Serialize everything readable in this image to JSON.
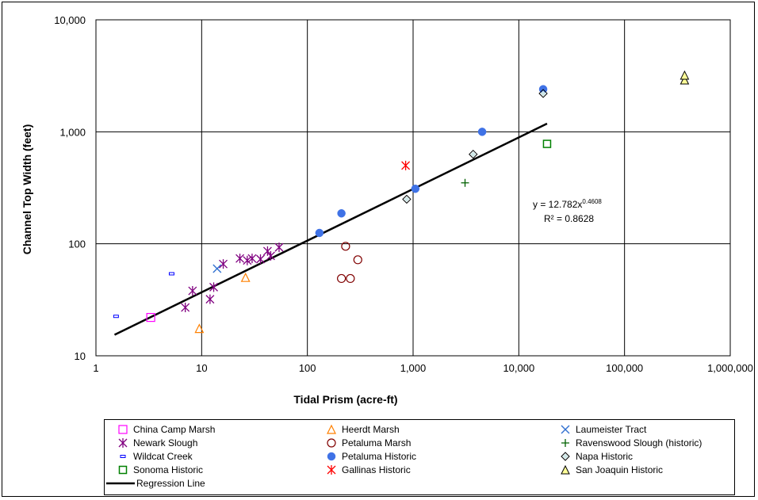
{
  "chart_data": {
    "type": "scatter",
    "title": "",
    "xlabel": "Tidal Prism (acre-ft)",
    "ylabel": "Channel Top Width (feet)",
    "xscale": "log",
    "yscale": "log",
    "xlim": [
      1,
      1000000
    ],
    "ylim": [
      10,
      10000
    ],
    "x_ticks": [
      1,
      10,
      100,
      1000,
      10000,
      100000,
      1000000
    ],
    "x_tick_labels": [
      "1",
      "10",
      "100",
      "1,000",
      "10,000",
      "100,000",
      "1,000,000"
    ],
    "y_ticks": [
      10,
      100,
      1000,
      10000
    ],
    "y_tick_labels": [
      "10",
      "100",
      "1,000",
      "10,000"
    ],
    "grid": true,
    "legend_position": "bottom",
    "equation_label": "y = 12.782x",
    "equation_exponent": "0.4608",
    "r2_label": "R² = 0.8628",
    "series": [
      {
        "name": "China Camp Marsh",
        "marker": "square-open",
        "color": "#ff00ff",
        "points": [
          [
            3.3,
            22
          ]
        ]
      },
      {
        "name": "Heerdt Marsh",
        "marker": "triangle-open",
        "color": "#ff8000",
        "points": [
          [
            9.5,
            17.5
          ],
          [
            26,
            50
          ]
        ]
      },
      {
        "name": "Laumeister Tract",
        "marker": "x",
        "color": "#3070d0",
        "points": [
          [
            14,
            60
          ]
        ]
      },
      {
        "name": "Newark Slough",
        "marker": "asterisk",
        "color": "#800080",
        "points": [
          [
            7,
            27
          ],
          [
            8.2,
            38
          ],
          [
            12,
            32
          ],
          [
            13,
            41
          ],
          [
            16,
            66
          ],
          [
            23,
            74
          ],
          [
            27,
            71
          ],
          [
            30,
            74
          ],
          [
            36,
            73
          ],
          [
            42,
            86
          ],
          [
            45,
            78
          ],
          [
            54,
            93
          ]
        ]
      },
      {
        "name": "Petaluma Marsh",
        "marker": "circle-open",
        "color": "#800000",
        "points": [
          [
            210,
            49
          ],
          [
            230,
            95
          ],
          [
            255,
            49
          ],
          [
            300,
            72
          ]
        ]
      },
      {
        "name": "Ravenswood Slough (historic)",
        "marker": "plus",
        "color": "#006000",
        "points": [
          [
            3100,
            350
          ]
        ]
      },
      {
        "name": "Wildcat Creek",
        "marker": "dash",
        "color": "#0000ff",
        "points": [
          [
            1.55,
            22.5
          ],
          [
            5.2,
            54
          ]
        ]
      },
      {
        "name": "Petaluma Historic",
        "marker": "circle-filled",
        "color": "#3f72e6",
        "points": [
          [
            130,
            125
          ],
          [
            210,
            187
          ],
          [
            1050,
            310
          ],
          [
            4500,
            1000
          ],
          [
            17000,
            2400
          ]
        ]
      },
      {
        "name": "Napa Historic",
        "marker": "diamond-open",
        "color": "#008080",
        "points": [
          [
            870,
            250
          ],
          [
            3700,
            630
          ],
          [
            17000,
            2200
          ]
        ]
      },
      {
        "name": "Sonoma Historic",
        "marker": "square-open-thick",
        "color": "#008000",
        "points": [
          [
            18500,
            780
          ]
        ]
      },
      {
        "name": "Gallinas Historic",
        "marker": "asterisk",
        "color": "#ff0000",
        "points": [
          [
            850,
            500
          ]
        ]
      },
      {
        "name": "San Joaquin Historic",
        "marker": "triangle-filled",
        "color": "#ffff99",
        "points": [
          [
            370000,
            2900
          ],
          [
            370000,
            3200
          ]
        ]
      }
    ],
    "regression": {
      "name": "Regression Line",
      "coef": 12.782,
      "exponent": 0.4608,
      "x_range": [
        1.5,
        18500
      ],
      "color": "#000000"
    }
  }
}
